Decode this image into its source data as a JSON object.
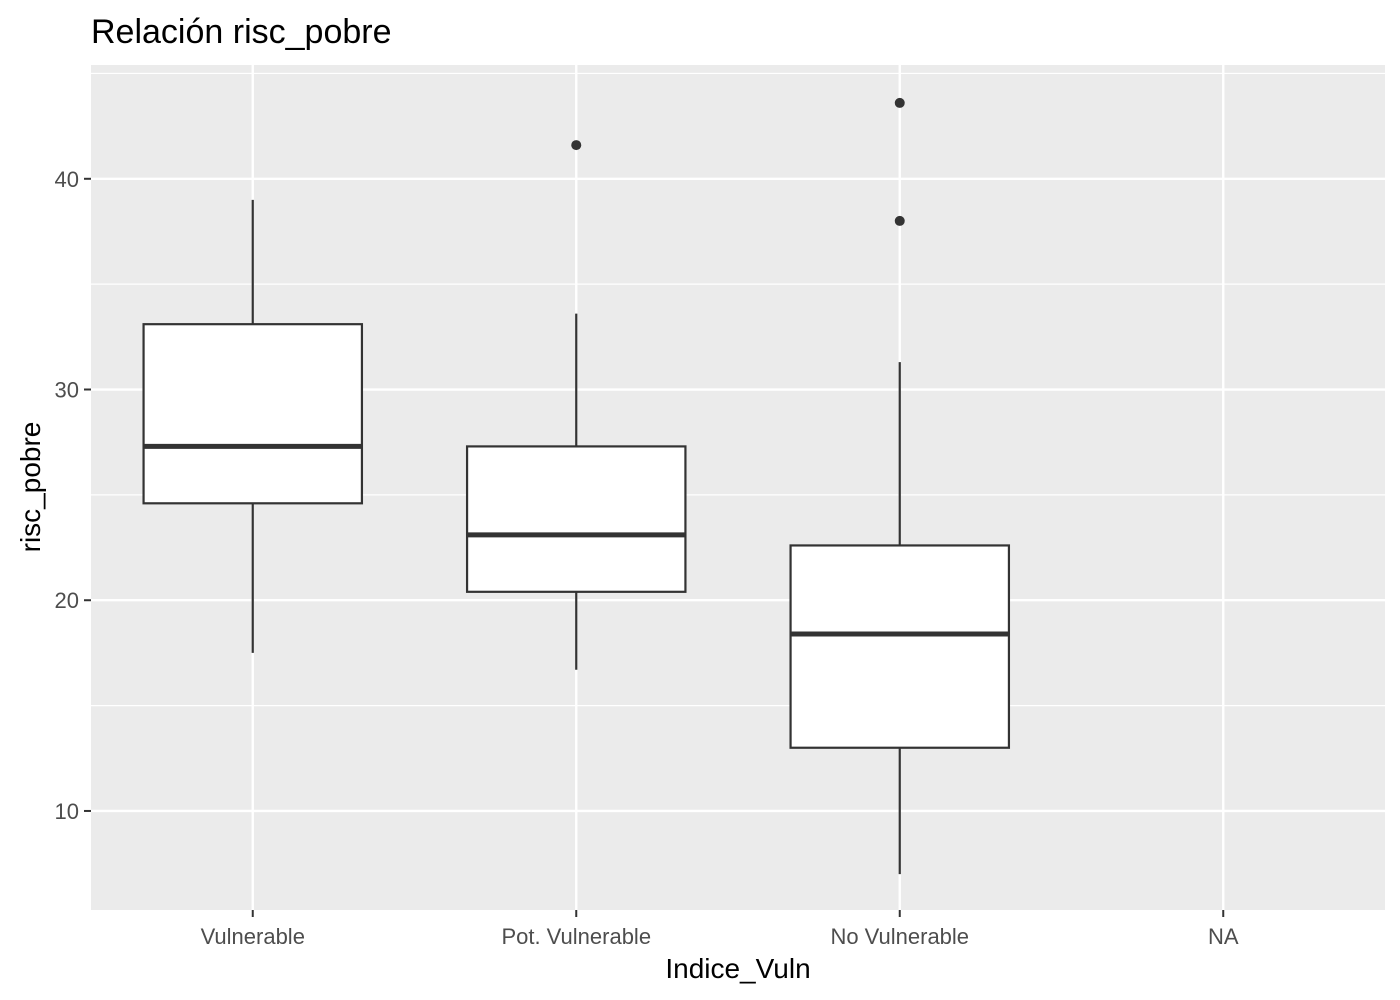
{
  "chart_data": {
    "type": "boxplot",
    "title": "Relación  risc_pobre",
    "xlabel": "Indice_Vuln",
    "ylabel": "risc_pobre",
    "categories": [
      "Vulnerable",
      "Pot. Vulnerable",
      "No Vulnerable",
      "NA"
    ],
    "ylim": [
      5.3,
      45.4
    ],
    "yticks": [
      10,
      20,
      30,
      40
    ],
    "grid": true,
    "colors": {
      "panel": "#ebebeb",
      "grid": "#ffffff",
      "box_fill": "#ffffff",
      "stroke": "#333333"
    },
    "boxes": [
      {
        "category": "Vulnerable",
        "min": 17.5,
        "q1": 24.6,
        "median": 27.3,
        "q3": 33.1,
        "max": 39.0,
        "outliers": []
      },
      {
        "category": "Pot. Vulnerable",
        "min": 16.7,
        "q1": 20.4,
        "median": 23.1,
        "q3": 27.3,
        "max": 33.6,
        "outliers": [
          41.6
        ]
      },
      {
        "category": "No Vulnerable",
        "min": 7.0,
        "q1": 13.0,
        "median": 18.4,
        "q3": 22.6,
        "max": 31.3,
        "outliers": [
          43.6,
          38.0
        ]
      },
      {
        "category": "NA",
        "min": null,
        "q1": null,
        "median": null,
        "q3": null,
        "max": null,
        "outliers": []
      }
    ]
  }
}
